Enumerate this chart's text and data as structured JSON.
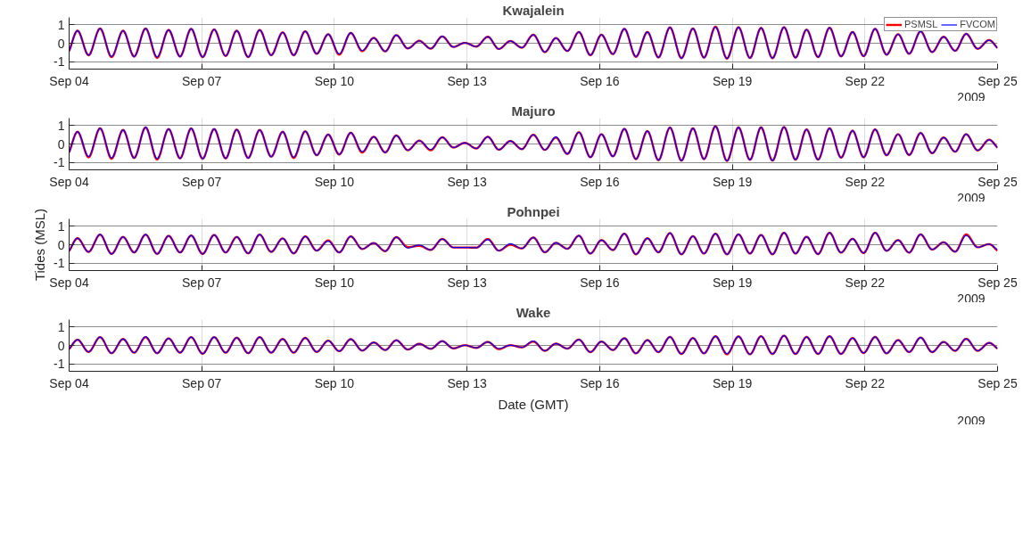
{
  "chart_data": [
    {
      "type": "line",
      "title": "Kwajalein",
      "legend": "top right",
      "grid": true,
      "xlim": [
        "2009-09-04",
        "2009-09-25"
      ],
      "ylim": [
        -1.4,
        1.4
      ],
      "yticks": [
        -1,
        0,
        1
      ],
      "xticks": [
        {
          "value": "2009-09-04",
          "label": "Sep 04"
        },
        {
          "value": "2009-09-07",
          "label": "Sep 07"
        },
        {
          "value": "2009-09-10",
          "label": "Sep 10"
        },
        {
          "value": "2009-09-13",
          "label": "Sep 13"
        },
        {
          "value": "2009-09-16",
          "label": "Sep 16"
        },
        {
          "value": "2009-09-19",
          "label": "Sep 19"
        },
        {
          "value": "2009-09-22",
          "label": "Sep 22"
        },
        {
          "value": "2009-09-25",
          "label": "Sep 25"
        }
      ],
      "annotations": [
        "2009"
      ],
      "x": [
        "2009-09-04T00:00",
        "2009-09-04T04:34",
        "2009-09-04T10:34",
        "2009-09-04T16:48",
        "2009-09-04T23:02",
        "2009-09-05T05:17",
        "2009-09-05T11:17",
        "2009-09-05T17:31",
        "2009-09-05T23:46",
        "2009-09-06T06:00",
        "2009-09-06T12:14",
        "2009-09-06T18:14",
        "2009-09-07T00:29",
        "2009-09-07T06:43",
        "2009-09-07T12:58",
        "2009-09-07T18:58",
        "2009-09-08T01:12",
        "2009-09-08T07:26",
        "2009-09-08T13:41",
        "2009-09-08T19:55",
        "2009-09-09T01:55",
        "2009-09-09T08:10",
        "2009-09-09T14:24",
        "2009-09-09T20:38",
        "2009-09-10T02:38",
        "2009-09-10T08:53",
        "2009-09-10T15:07",
        "2009-09-10T21:22",
        "2009-09-11T03:36",
        "2009-09-11T09:36",
        "2009-09-11T15:50",
        "2009-09-11T22:05",
        "2009-09-12T04:19",
        "2009-09-12T10:34",
        "2009-09-12T16:34",
        "2009-09-12T22:48",
        "2009-09-13T05:02",
        "2009-09-13T11:17",
        "2009-09-13T17:17",
        "2009-09-13T23:31",
        "2009-09-14T05:46",
        "2009-09-14T12:00",
        "2009-09-14T18:14",
        "2009-09-15T00:14",
        "2009-09-15T06:29",
        "2009-09-15T12:43",
        "2009-09-15T18:58",
        "2009-09-16T00:58",
        "2009-09-16T07:12",
        "2009-09-16T13:26",
        "2009-09-16T19:41",
        "2009-09-17T01:55",
        "2009-09-17T07:55",
        "2009-09-17T14:10",
        "2009-09-17T20:24",
        "2009-09-18T02:38",
        "2009-09-18T08:38",
        "2009-09-18T14:53",
        "2009-09-18T21:07",
        "2009-09-19T03:22",
        "2009-09-19T09:36",
        "2009-09-19T15:36",
        "2009-09-19T21:50",
        "2009-09-20T04:05",
        "2009-09-20T10:19",
        "2009-09-20T16:19",
        "2009-09-20T22:34",
        "2009-09-21T04:48",
        "2009-09-21T11:02",
        "2009-09-21T17:17",
        "2009-09-21T23:17",
        "2009-09-22T05:31",
        "2009-09-22T11:46",
        "2009-09-22T18:00",
        "2009-09-23T00:00",
        "2009-09-23T06:14",
        "2009-09-23T12:29",
        "2009-09-23T18:43",
        "2009-09-24T00:58",
        "2009-09-24T06:58",
        "2009-09-24T13:12",
        "2009-09-24T19:26",
        "2009-09-25T00:00"
      ],
      "series": [
        {
          "name": "PSMSL",
          "color": "#ff0000",
          "values": [
            -0.43,
            0.68,
            -0.65,
            0.8,
            -0.75,
            0.68,
            -0.72,
            0.8,
            -0.79,
            0.72,
            -0.72,
            0.78,
            -0.75,
            0.75,
            -0.69,
            0.68,
            -0.75,
            0.72,
            -0.65,
            0.59,
            -0.65,
            0.65,
            -0.57,
            0.49,
            -0.62,
            0.56,
            -0.43,
            0.29,
            -0.44,
            0.44,
            -0.28,
            0.13,
            -0.29,
            0.37,
            -0.2,
            0.02,
            -0.18,
            0.35,
            -0.31,
            0.12,
            -0.24,
            0.46,
            -0.48,
            0.28,
            -0.42,
            0.61,
            -0.65,
            0.46,
            -0.59,
            0.78,
            -0.74,
            0.61,
            -0.77,
            0.86,
            -0.81,
            0.8,
            -0.78,
            0.9,
            -0.83,
            0.87,
            -0.8,
            0.83,
            -0.81,
            0.87,
            -0.78,
            0.74,
            -0.75,
            0.84,
            -0.71,
            0.61,
            -0.7,
            0.78,
            -0.62,
            0.49,
            -0.57,
            0.64,
            -0.48,
            0.35,
            -0.41,
            0.51,
            -0.3,
            0.17,
            -0.26
          ]
        },
        {
          "name": "FVCOM",
          "color": "#0000ff",
          "values": [
            -0.43,
            0.68,
            -0.65,
            0.8,
            -0.72,
            0.68,
            -0.72,
            0.8,
            -0.75,
            0.72,
            -0.72,
            0.78,
            -0.75,
            0.75,
            -0.69,
            0.68,
            -0.75,
            0.72,
            -0.65,
            0.59,
            -0.65,
            0.65,
            -0.57,
            0.49,
            -0.58,
            0.56,
            -0.4,
            0.29,
            -0.44,
            0.44,
            -0.28,
            0.13,
            -0.29,
            0.37,
            -0.2,
            0.02,
            -0.18,
            0.35,
            -0.31,
            0.12,
            -0.24,
            0.46,
            -0.48,
            0.28,
            -0.42,
            0.61,
            -0.65,
            0.46,
            -0.59,
            0.78,
            -0.72,
            0.61,
            -0.77,
            0.86,
            -0.81,
            0.8,
            -0.78,
            0.88,
            -0.83,
            0.87,
            -0.8,
            0.83,
            -0.81,
            0.87,
            -0.78,
            0.74,
            -0.75,
            0.84,
            -0.71,
            0.61,
            -0.7,
            0.78,
            -0.62,
            0.49,
            -0.57,
            0.64,
            -0.48,
            0.35,
            -0.41,
            0.51,
            -0.3,
            0.17,
            -0.26
          ]
        }
      ]
    },
    {
      "type": "line",
      "title": "Majuro",
      "grid": true,
      "xlim": [
        "2009-09-04",
        "2009-09-25"
      ],
      "ylim": [
        -1.4,
        1.4
      ],
      "yticks": [
        -1,
        0,
        1
      ],
      "xticks": [
        {
          "value": "2009-09-04",
          "label": "Sep 04"
        },
        {
          "value": "2009-09-07",
          "label": "Sep 07"
        },
        {
          "value": "2009-09-10",
          "label": "Sep 10"
        },
        {
          "value": "2009-09-13",
          "label": "Sep 13"
        },
        {
          "value": "2009-09-16",
          "label": "Sep 16"
        },
        {
          "value": "2009-09-19",
          "label": "Sep 19"
        },
        {
          "value": "2009-09-22",
          "label": "Sep 22"
        },
        {
          "value": "2009-09-25",
          "label": "Sep 25"
        }
      ],
      "annotations": [
        "2009"
      ],
      "x": [
        "2009-09-04T00:00",
        "2009-09-04T04:34",
        "2009-09-04T10:34",
        "2009-09-04T16:48",
        "2009-09-04T23:02",
        "2009-09-05T05:17",
        "2009-09-05T11:17",
        "2009-09-05T17:31",
        "2009-09-05T23:46",
        "2009-09-06T06:00",
        "2009-09-06T12:14",
        "2009-09-06T18:14",
        "2009-09-07T00:29",
        "2009-09-07T06:43",
        "2009-09-07T12:58",
        "2009-09-07T18:58",
        "2009-09-08T01:12",
        "2009-09-08T07:26",
        "2009-09-08T13:41",
        "2009-09-08T19:55",
        "2009-09-09T01:55",
        "2009-09-09T08:10",
        "2009-09-09T14:24",
        "2009-09-09T20:38",
        "2009-09-10T02:38",
        "2009-09-10T08:53",
        "2009-09-10T15:07",
        "2009-09-10T21:22",
        "2009-09-11T03:36",
        "2009-09-11T09:36",
        "2009-09-11T15:50",
        "2009-09-11T22:05",
        "2009-09-12T04:19",
        "2009-09-12T10:34",
        "2009-09-12T16:34",
        "2009-09-12T22:48",
        "2009-09-13T05:02",
        "2009-09-13T11:17",
        "2009-09-13T17:17",
        "2009-09-13T23:31",
        "2009-09-14T05:46",
        "2009-09-14T12:00",
        "2009-09-14T18:14",
        "2009-09-15T00:14",
        "2009-09-15T06:29",
        "2009-09-15T12:43",
        "2009-09-15T18:58",
        "2009-09-16T00:58",
        "2009-09-16T07:12",
        "2009-09-16T13:26",
        "2009-09-16T19:41",
        "2009-09-17T01:55",
        "2009-09-17T07:55",
        "2009-09-17T14:10",
        "2009-09-17T20:24",
        "2009-09-18T02:38",
        "2009-09-18T08:38",
        "2009-09-18T14:53",
        "2009-09-18T21:07",
        "2009-09-19T03:22",
        "2009-09-19T09:36",
        "2009-09-19T15:36",
        "2009-09-19T21:50",
        "2009-09-20T04:05",
        "2009-09-20T10:19",
        "2009-09-20T16:19",
        "2009-09-20T22:34",
        "2009-09-21T04:48",
        "2009-09-21T11:02",
        "2009-09-21T17:17",
        "2009-09-21T23:17",
        "2009-09-22T05:31",
        "2009-09-22T11:46",
        "2009-09-22T18:00",
        "2009-09-23T00:00",
        "2009-09-23T06:14",
        "2009-09-23T12:29",
        "2009-09-23T18:43",
        "2009-09-24T00:58",
        "2009-09-24T06:58",
        "2009-09-24T13:12",
        "2009-09-24T19:26",
        "2009-09-25T00:00"
      ],
      "series": [
        {
          "color": "#ff0000",
          "values": [
            -0.46,
            0.66,
            -0.72,
            0.85,
            -0.8,
            0.76,
            -0.76,
            0.9,
            -0.84,
            0.81,
            -0.78,
            0.84,
            -0.8,
            0.81,
            -0.78,
            0.78,
            -0.76,
            0.76,
            -0.69,
            0.66,
            -0.76,
            0.69,
            -0.61,
            0.51,
            -0.57,
            0.61,
            -0.46,
            0.39,
            -0.46,
            0.46,
            -0.34,
            0.18,
            -0.34,
            0.36,
            -0.19,
            0.06,
            -0.24,
            0.39,
            -0.31,
            0.16,
            -0.28,
            0.5,
            -0.32,
            0.35,
            -0.54,
            0.64,
            -0.72,
            0.53,
            -0.67,
            0.82,
            -0.82,
            0.7,
            -0.88,
            0.89,
            -0.9,
            0.85,
            -0.82,
            0.96,
            -0.92,
            0.9,
            -0.86,
            0.9,
            -0.9,
            0.92,
            -0.85,
            0.79,
            -0.85,
            0.85,
            -0.74,
            0.72,
            -0.72,
            0.79,
            -0.61,
            0.53,
            -0.6,
            0.6,
            -0.5,
            0.35,
            -0.42,
            0.53,
            -0.35,
            0.23,
            -0.2
          ]
        },
        {
          "color": "#0000ff",
          "values": [
            -0.46,
            0.66,
            -0.68,
            0.85,
            -0.76,
            0.76,
            -0.76,
            0.9,
            -0.8,
            0.81,
            -0.78,
            0.84,
            -0.8,
            0.81,
            -0.78,
            0.78,
            -0.76,
            0.76,
            -0.69,
            0.66,
            -0.72,
            0.69,
            -0.61,
            0.51,
            -0.57,
            0.61,
            -0.42,
            0.39,
            -0.46,
            0.46,
            -0.34,
            0.18,
            -0.3,
            0.36,
            -0.19,
            0.06,
            -0.24,
            0.39,
            -0.31,
            0.16,
            -0.28,
            0.5,
            -0.32,
            0.38,
            -0.54,
            0.64,
            -0.72,
            0.53,
            -0.67,
            0.82,
            -0.82,
            0.7,
            -0.88,
            0.89,
            -0.9,
            0.85,
            -0.82,
            0.96,
            -0.92,
            0.9,
            -0.86,
            0.9,
            -0.9,
            0.92,
            -0.85,
            0.79,
            -0.85,
            0.85,
            -0.74,
            0.72,
            -0.72,
            0.79,
            -0.61,
            0.53,
            -0.6,
            0.6,
            -0.5,
            0.35,
            -0.42,
            0.53,
            -0.35,
            0.23,
            -0.2
          ]
        }
      ]
    },
    {
      "type": "line",
      "title": "Pohnpei",
      "ylabel": "Tides (MSL)",
      "grid": true,
      "xlim": [
        "2009-09-04",
        "2009-09-25"
      ],
      "ylim": [
        -1.4,
        1.4
      ],
      "yticks": [
        -1,
        0,
        1
      ],
      "xticks": [
        {
          "value": "2009-09-04",
          "label": "Sep 04"
        },
        {
          "value": "2009-09-07",
          "label": "Sep 07"
        },
        {
          "value": "2009-09-10",
          "label": "Sep 10"
        },
        {
          "value": "2009-09-13",
          "label": "Sep 13"
        },
        {
          "value": "2009-09-16",
          "label": "Sep 16"
        },
        {
          "value": "2009-09-19",
          "label": "Sep 19"
        },
        {
          "value": "2009-09-22",
          "label": "Sep 22"
        },
        {
          "value": "2009-09-25",
          "label": "Sep 25"
        }
      ],
      "annotations": [
        "2009"
      ],
      "x": [
        "2009-09-04T00:00",
        "2009-09-04T04:34",
        "2009-09-04T10:34",
        "2009-09-04T16:48",
        "2009-09-04T23:02",
        "2009-09-05T05:17",
        "2009-09-05T11:17",
        "2009-09-05T17:31",
        "2009-09-05T23:46",
        "2009-09-06T06:00",
        "2009-09-06T12:14",
        "2009-09-06T18:14",
        "2009-09-07T00:29",
        "2009-09-07T06:43",
        "2009-09-07T12:58",
        "2009-09-07T18:58",
        "2009-09-08T01:12",
        "2009-09-08T07:26",
        "2009-09-08T13:41",
        "2009-09-08T19:55",
        "2009-09-09T01:55",
        "2009-09-09T08:10",
        "2009-09-09T14:24",
        "2009-09-09T20:38",
        "2009-09-10T02:38",
        "2009-09-10T08:53",
        "2009-09-10T15:07",
        "2009-09-10T21:22",
        "2009-09-11T03:36",
        "2009-09-11T09:36",
        "2009-09-11T15:50",
        "2009-09-11T22:05",
        "2009-09-12T04:19",
        "2009-09-12T10:34",
        "2009-09-12T16:34",
        "2009-09-12T22:48",
        "2009-09-13T05:02",
        "2009-09-13T11:17",
        "2009-09-13T17:17",
        "2009-09-13T23:31",
        "2009-09-14T05:46",
        "2009-09-14T12:00",
        "2009-09-14T18:14",
        "2009-09-15T00:14",
        "2009-09-15T06:29",
        "2009-09-15T12:43",
        "2009-09-15T18:58",
        "2009-09-16T00:58",
        "2009-09-16T07:12",
        "2009-09-16T13:26",
        "2009-09-16T19:41",
        "2009-09-17T01:55",
        "2009-09-17T07:55",
        "2009-09-17T14:10",
        "2009-09-17T20:24",
        "2009-09-18T02:38",
        "2009-09-18T08:38",
        "2009-09-18T14:53",
        "2009-09-18T21:07",
        "2009-09-19T03:22",
        "2009-09-19T09:36",
        "2009-09-19T15:36",
        "2009-09-19T21:50",
        "2009-09-20T04:05",
        "2009-09-20T10:19",
        "2009-09-20T16:19",
        "2009-09-20T22:34",
        "2009-09-21T04:48",
        "2009-09-21T11:02",
        "2009-09-21T17:17",
        "2009-09-21T23:17",
        "2009-09-22T05:31",
        "2009-09-22T11:46",
        "2009-09-22T18:00",
        "2009-09-23T00:00",
        "2009-09-23T06:14",
        "2009-09-23T12:29",
        "2009-09-23T18:43",
        "2009-09-24T00:58",
        "2009-09-24T06:58",
        "2009-09-24T13:12",
        "2009-09-24T19:26",
        "2009-09-25T00:00"
      ],
      "series": [
        {
          "color": "#ff0000",
          "values": [
            -0.35,
            0.35,
            -0.39,
            0.55,
            -0.5,
            0.42,
            -0.42,
            0.55,
            -0.5,
            0.48,
            -0.42,
            0.5,
            -0.5,
            0.53,
            -0.42,
            0.42,
            -0.47,
            0.55,
            -0.39,
            0.34,
            -0.47,
            0.45,
            -0.32,
            0.23,
            -0.42,
            0.45,
            -0.23,
            0.09,
            -0.35,
            0.41,
            -0.13,
            -0.06,
            -0.28,
            0.31,
            -0.15,
            -0.15,
            -0.16,
            0.31,
            -0.32,
            0.0,
            -0.2,
            0.39,
            -0.41,
            0.1,
            -0.22,
            0.49,
            -0.48,
            0.25,
            -0.29,
            0.6,
            -0.52,
            0.35,
            -0.41,
            0.63,
            -0.52,
            0.46,
            -0.48,
            0.6,
            -0.52,
            0.56,
            -0.48,
            0.53,
            -0.52,
            0.65,
            -0.48,
            0.43,
            -0.51,
            0.65,
            -0.43,
            0.32,
            -0.45,
            0.65,
            -0.33,
            0.25,
            -0.43,
            0.56,
            -0.26,
            0.13,
            -0.38,
            0.56,
            -0.14,
            0.03,
            -0.33
          ]
        },
        {
          "color": "#0000ff",
          "values": [
            -0.35,
            0.35,
            -0.39,
            0.55,
            -0.5,
            0.42,
            -0.42,
            0.55,
            -0.5,
            0.48,
            -0.42,
            0.5,
            -0.5,
            0.53,
            -0.42,
            0.42,
            -0.47,
            0.55,
            -0.39,
            0.34,
            -0.47,
            0.45,
            -0.32,
            0.2,
            -0.42,
            0.45,
            -0.23,
            0.09,
            -0.35,
            0.41,
            -0.18,
            -0.02,
            -0.28,
            0.31,
            -0.15,
            -0.15,
            -0.16,
            0.28,
            -0.32,
            0.05,
            -0.2,
            0.39,
            -0.41,
            0.1,
            -0.22,
            0.49,
            -0.48,
            0.25,
            -0.29,
            0.6,
            -0.52,
            0.35,
            -0.41,
            0.63,
            -0.52,
            0.46,
            -0.48,
            0.6,
            -0.52,
            0.56,
            -0.48,
            0.53,
            -0.52,
            0.65,
            -0.48,
            0.43,
            -0.51,
            0.65,
            -0.43,
            0.32,
            -0.45,
            0.65,
            -0.33,
            0.25,
            -0.43,
            0.56,
            -0.26,
            0.13,
            -0.38,
            0.5,
            -0.14,
            0.03,
            -0.28
          ]
        }
      ]
    },
    {
      "type": "line",
      "title": "Wake",
      "xlabel": "Date (GMT)",
      "grid": true,
      "xlim": [
        "2009-09-04",
        "2009-09-25"
      ],
      "ylim": [
        -1.4,
        1.4
      ],
      "yticks": [
        -1,
        0,
        1
      ],
      "xticks": [
        {
          "value": "2009-09-04",
          "label": "Sep 04"
        },
        {
          "value": "2009-09-07",
          "label": "Sep 07"
        },
        {
          "value": "2009-09-10",
          "label": "Sep 10"
        },
        {
          "value": "2009-09-13",
          "label": "Sep 13"
        },
        {
          "value": "2009-09-16",
          "label": "Sep 16"
        },
        {
          "value": "2009-09-19",
          "label": "Sep 19"
        },
        {
          "value": "2009-09-22",
          "label": "Sep 22"
        },
        {
          "value": "2009-09-25",
          "label": "Sep 25"
        }
      ],
      "annotations": [
        "2009"
      ],
      "x": [
        "2009-09-04T00:00",
        "2009-09-04T04:34",
        "2009-09-04T10:34",
        "2009-09-04T16:48",
        "2009-09-04T23:02",
        "2009-09-05T05:17",
        "2009-09-05T11:17",
        "2009-09-05T17:31",
        "2009-09-05T23:46",
        "2009-09-06T06:00",
        "2009-09-06T12:14",
        "2009-09-06T18:14",
        "2009-09-07T00:29",
        "2009-09-07T06:43",
        "2009-09-07T12:58",
        "2009-09-07T18:58",
        "2009-09-08T01:12",
        "2009-09-08T07:26",
        "2009-09-08T13:41",
        "2009-09-08T19:55",
        "2009-09-09T01:55",
        "2009-09-09T08:10",
        "2009-09-09T14:24",
        "2009-09-09T20:38",
        "2009-09-10T02:38",
        "2009-09-10T08:53",
        "2009-09-10T15:07",
        "2009-09-10T21:22",
        "2009-09-11T03:36",
        "2009-09-11T09:36",
        "2009-09-11T15:50",
        "2009-09-11T22:05",
        "2009-09-12T04:19",
        "2009-09-12T10:34",
        "2009-09-12T16:34",
        "2009-09-12T22:48",
        "2009-09-13T05:02",
        "2009-09-13T11:17",
        "2009-09-13T17:17",
        "2009-09-13T23:31",
        "2009-09-14T05:46",
        "2009-09-14T12:00",
        "2009-09-14T18:14",
        "2009-09-15T00:14",
        "2009-09-15T06:29",
        "2009-09-15T12:43",
        "2009-09-15T18:58",
        "2009-09-16T00:58",
        "2009-09-16T07:12",
        "2009-09-16T13:26",
        "2009-09-16T19:41",
        "2009-09-17T01:55",
        "2009-09-17T07:55",
        "2009-09-17T14:10",
        "2009-09-17T20:24",
        "2009-09-18T02:38",
        "2009-09-18T08:38",
        "2009-09-18T14:53",
        "2009-09-18T21:07",
        "2009-09-19T03:22",
        "2009-09-19T09:36",
        "2009-09-19T15:36",
        "2009-09-19T21:50",
        "2009-09-20T04:05",
        "2009-09-20T10:19",
        "2009-09-20T16:19",
        "2009-09-20T22:34",
        "2009-09-21T04:48",
        "2009-09-21T11:02",
        "2009-09-21T17:17",
        "2009-09-21T23:17",
        "2009-09-22T05:31",
        "2009-09-22T11:46",
        "2009-09-22T18:00",
        "2009-09-23T00:00",
        "2009-09-23T06:14",
        "2009-09-23T12:29",
        "2009-09-23T18:43",
        "2009-09-24T00:58",
        "2009-09-24T06:58",
        "2009-09-24T13:12",
        "2009-09-24T19:26",
        "2009-09-25T00:00"
      ],
      "series": [
        {
          "color": "#ff0000",
          "values": [
            -0.2,
            0.31,
            -0.35,
            0.45,
            -0.42,
            0.35,
            -0.39,
            0.45,
            -0.42,
            0.38,
            -0.39,
            0.45,
            -0.45,
            0.45,
            -0.39,
            0.42,
            -0.42,
            0.45,
            -0.39,
            0.35,
            -0.39,
            0.41,
            -0.35,
            0.26,
            -0.31,
            0.34,
            -0.28,
            0.16,
            -0.25,
            0.28,
            -0.22,
            0.09,
            -0.18,
            0.23,
            -0.16,
            0.01,
            -0.13,
            0.19,
            -0.2,
            0.01,
            -0.1,
            0.21,
            -0.29,
            0.1,
            -0.17,
            0.32,
            -0.36,
            0.21,
            -0.25,
            0.39,
            -0.43,
            0.29,
            -0.36,
            0.46,
            -0.46,
            0.4,
            -0.43,
            0.5,
            -0.48,
            0.49,
            -0.48,
            0.5,
            -0.46,
            0.53,
            -0.46,
            0.46,
            -0.46,
            0.5,
            -0.46,
            0.4,
            -0.41,
            0.46,
            -0.43,
            0.29,
            -0.36,
            0.43,
            -0.36,
            0.19,
            -0.29,
            0.36,
            -0.29,
            0.14,
            -0.17
          ]
        },
        {
          "color": "#0000ff",
          "values": [
            -0.2,
            0.31,
            -0.35,
            0.45,
            -0.42,
            0.35,
            -0.39,
            0.47,
            -0.42,
            0.38,
            -0.39,
            0.45,
            -0.45,
            0.45,
            -0.39,
            0.42,
            -0.42,
            0.45,
            -0.39,
            0.35,
            -0.39,
            0.41,
            -0.35,
            0.26,
            -0.31,
            0.34,
            -0.28,
            0.16,
            -0.25,
            0.28,
            -0.22,
            0.09,
            -0.18,
            0.23,
            -0.16,
            0.01,
            -0.13,
            0.19,
            -0.17,
            0.01,
            -0.1,
            0.24,
            -0.29,
            0.1,
            -0.17,
            0.32,
            -0.36,
            0.21,
            -0.25,
            0.39,
            -0.43,
            0.29,
            -0.36,
            0.46,
            -0.46,
            0.4,
            -0.43,
            0.5,
            -0.45,
            0.49,
            -0.48,
            0.5,
            -0.46,
            0.53,
            -0.46,
            0.46,
            -0.46,
            0.5,
            -0.46,
            0.4,
            -0.41,
            0.46,
            -0.43,
            0.29,
            -0.36,
            0.43,
            -0.36,
            0.19,
            -0.29,
            0.36,
            -0.29,
            0.14,
            -0.17
          ]
        }
      ]
    }
  ]
}
